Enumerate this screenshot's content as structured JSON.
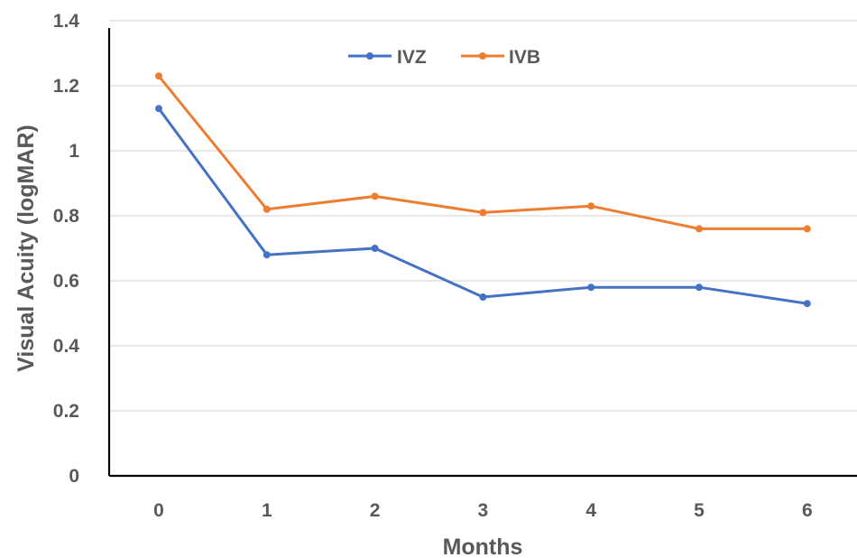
{
  "chart_data": {
    "type": "line",
    "title": "",
    "xlabel": "Months",
    "ylabel": "Visual Acuity (logMAR)",
    "categories": [
      "0",
      "1",
      "2",
      "3",
      "4",
      "5",
      "6"
    ],
    "x": [
      0,
      1,
      2,
      3,
      4,
      5,
      6
    ],
    "ylim": [
      0,
      1.4
    ],
    "yticks": [
      0,
      0.2,
      0.4,
      0.6,
      0.8,
      1,
      1.2,
      1.4
    ],
    "ytick_labels": [
      "0",
      "0.2",
      "0.4",
      "0.6",
      "0.8",
      "1",
      "1.2",
      "1.4"
    ],
    "grid": true,
    "legend": "top",
    "series": [
      {
        "name": "IVZ",
        "color": "#4472C4",
        "values": [
          1.13,
          0.68,
          0.7,
          0.55,
          0.58,
          0.58,
          0.53
        ]
      },
      {
        "name": "IVB",
        "color": "#ED7D31",
        "values": [
          1.23,
          0.82,
          0.86,
          0.81,
          0.83,
          0.76,
          0.76
        ]
      }
    ]
  }
}
